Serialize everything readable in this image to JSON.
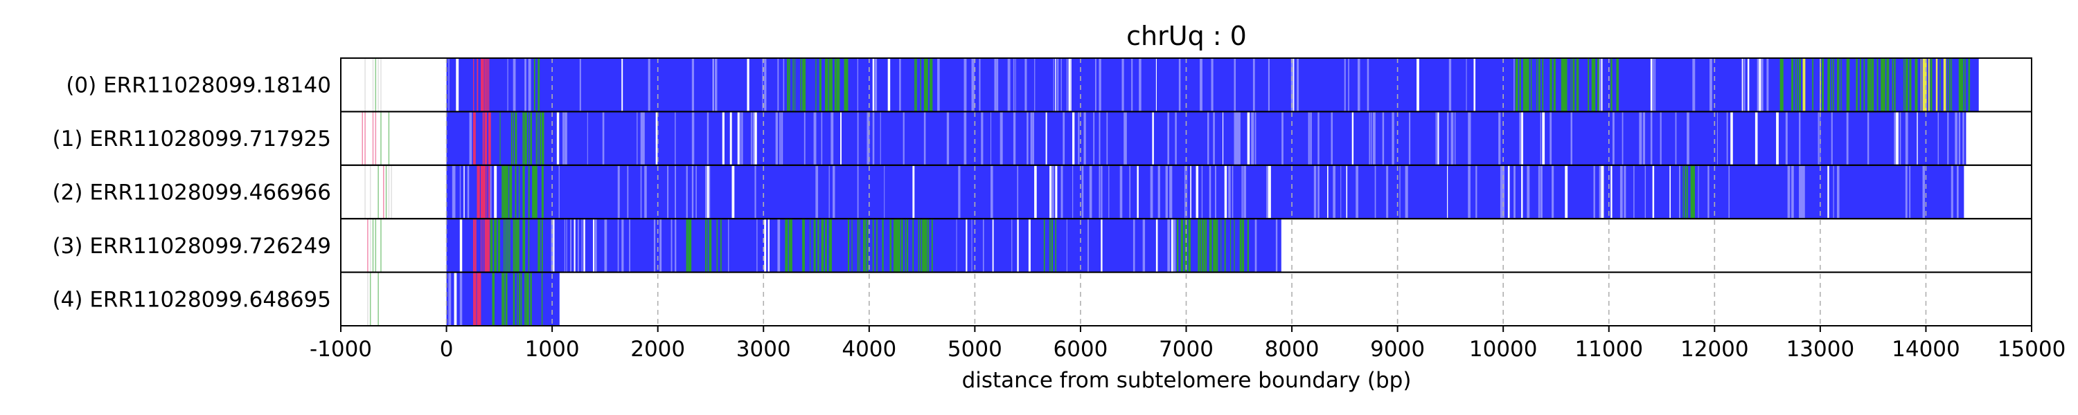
{
  "chart_data": {
    "type": "heatmap",
    "title": "chrUq : 0",
    "xlabel": "distance from subtelomere boundary (bp)",
    "ylabel": "",
    "xlim": [
      -1000,
      15000
    ],
    "xticks": [
      -1000,
      0,
      1000,
      2000,
      3000,
      4000,
      5000,
      6000,
      7000,
      8000,
      9000,
      10000,
      11000,
      12000,
      13000,
      14000,
      15000
    ],
    "xtick_labels": [
      "-1000",
      "0",
      "1000",
      "2000",
      "3000",
      "4000",
      "5000",
      "6000",
      "7000",
      "8000",
      "9000",
      "10000",
      "11000",
      "12000",
      "13000",
      "14000",
      "15000"
    ],
    "grid": "vertical dashed at major ticks (0–14000)",
    "legend": "none",
    "colors": {
      "blue_main": "#3333ff",
      "blue_light": "#8888ff",
      "green": "#2ca02c",
      "red_pink": "#e6306e",
      "yellow": "#e8e84a",
      "gray_line": "#c8c8c8",
      "white_gap": "#ffffff"
    },
    "reads": [
      {
        "label": "(0) ERR11028099.18140",
        "start": 0,
        "end": 14500,
        "pre_start": -800,
        "pre_end": -600,
        "pink_regions": [
          [
            250,
            400
          ]
        ],
        "green_regions": [
          [
            800,
            900
          ],
          [
            3200,
            3800
          ],
          [
            4400,
            4600
          ],
          [
            10100,
            10900
          ],
          [
            11000,
            11100
          ],
          [
            12600,
            14400
          ]
        ],
        "yellow_regions": [
          [
            12800,
            13000
          ],
          [
            13900,
            14200
          ]
        ]
      },
      {
        "label": "(1) ERR11028099.717925",
        "start": 0,
        "end": 14380,
        "pre_start": -800,
        "pre_end": -500,
        "pink_regions": [
          [
            250,
            400
          ]
        ],
        "green_regions": [
          [
            500,
            900
          ]
        ],
        "yellow_regions": []
      },
      {
        "label": "(2) ERR11028099.466966",
        "start": 0,
        "end": 14360,
        "pre_start": -800,
        "pre_end": -500,
        "pink_regions": [
          [
            250,
            400
          ]
        ],
        "green_regions": [
          [
            500,
            900
          ],
          [
            11700,
            11800
          ]
        ],
        "yellow_regions": []
      },
      {
        "label": "(3) ERR11028099.726249",
        "start": 0,
        "end": 7900,
        "pre_start": -800,
        "pre_end": -600,
        "pink_regions": [
          [
            250,
            400
          ]
        ],
        "green_regions": [
          [
            400,
            900
          ],
          [
            2200,
            2600
          ],
          [
            3200,
            4600
          ],
          [
            5600,
            5800
          ],
          [
            6900,
            7600
          ]
        ],
        "yellow_regions": []
      },
      {
        "label": "(4) ERR11028099.648695",
        "start": 0,
        "end": 1070,
        "pre_start": -800,
        "pre_end": -600,
        "pink_regions": [
          [
            250,
            350
          ]
        ],
        "green_regions": [
          [
            400,
            900
          ]
        ],
        "yellow_regions": []
      }
    ]
  }
}
